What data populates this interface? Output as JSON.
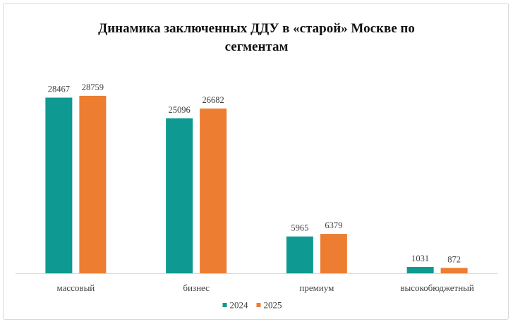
{
  "chart_data": {
    "type": "bar",
    "title_lines": [
      "Динамика заключенных ДДУ в «старой» Москве по",
      "сегментам"
    ],
    "categories": [
      "массовый",
      "бизнес",
      "премиум",
      "высокобюджетный"
    ],
    "series": [
      {
        "name": "2024",
        "values": [
          28467,
          25096,
          5965,
          1031
        ],
        "color": "#0E9A92"
      },
      {
        "name": "2025",
        "values": [
          28759,
          26682,
          6379,
          872
        ],
        "color": "#ED7D31"
      }
    ],
    "ylim": [
      0,
      31000
    ],
    "grid": false,
    "legend_position": "bottom",
    "axis_color": "#d9d9d9",
    "data_labels": true
  }
}
